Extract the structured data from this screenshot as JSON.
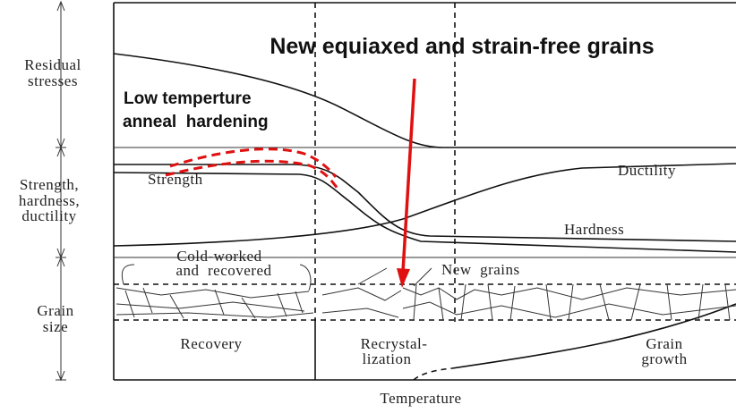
{
  "left_labels": {
    "residual": [
      "Residual",
      "stresses"
    ],
    "strength": [
      "Strength,",
      "hardness,",
      "ductility"
    ],
    "grain": [
      "Grain",
      "size"
    ]
  },
  "title": "New equiaxed and strain-free grains",
  "annotation": [
    "Low temperture",
    "anneal  hardening"
  ],
  "curves": {
    "strength": "Strength",
    "ductility": "Ductility",
    "hardness": "Hardness"
  },
  "grain_labels": {
    "cold_worked": [
      "Cold-worked",
      "and  recovered"
    ],
    "new_grains": "New  grains"
  },
  "stages": {
    "recovery": [
      "Recovery"
    ],
    "recrystallization": [
      "Recrystal-",
      "lization"
    ],
    "grain_growth": [
      "Grain",
      "growth"
    ]
  },
  "x_label": "Temperature"
}
